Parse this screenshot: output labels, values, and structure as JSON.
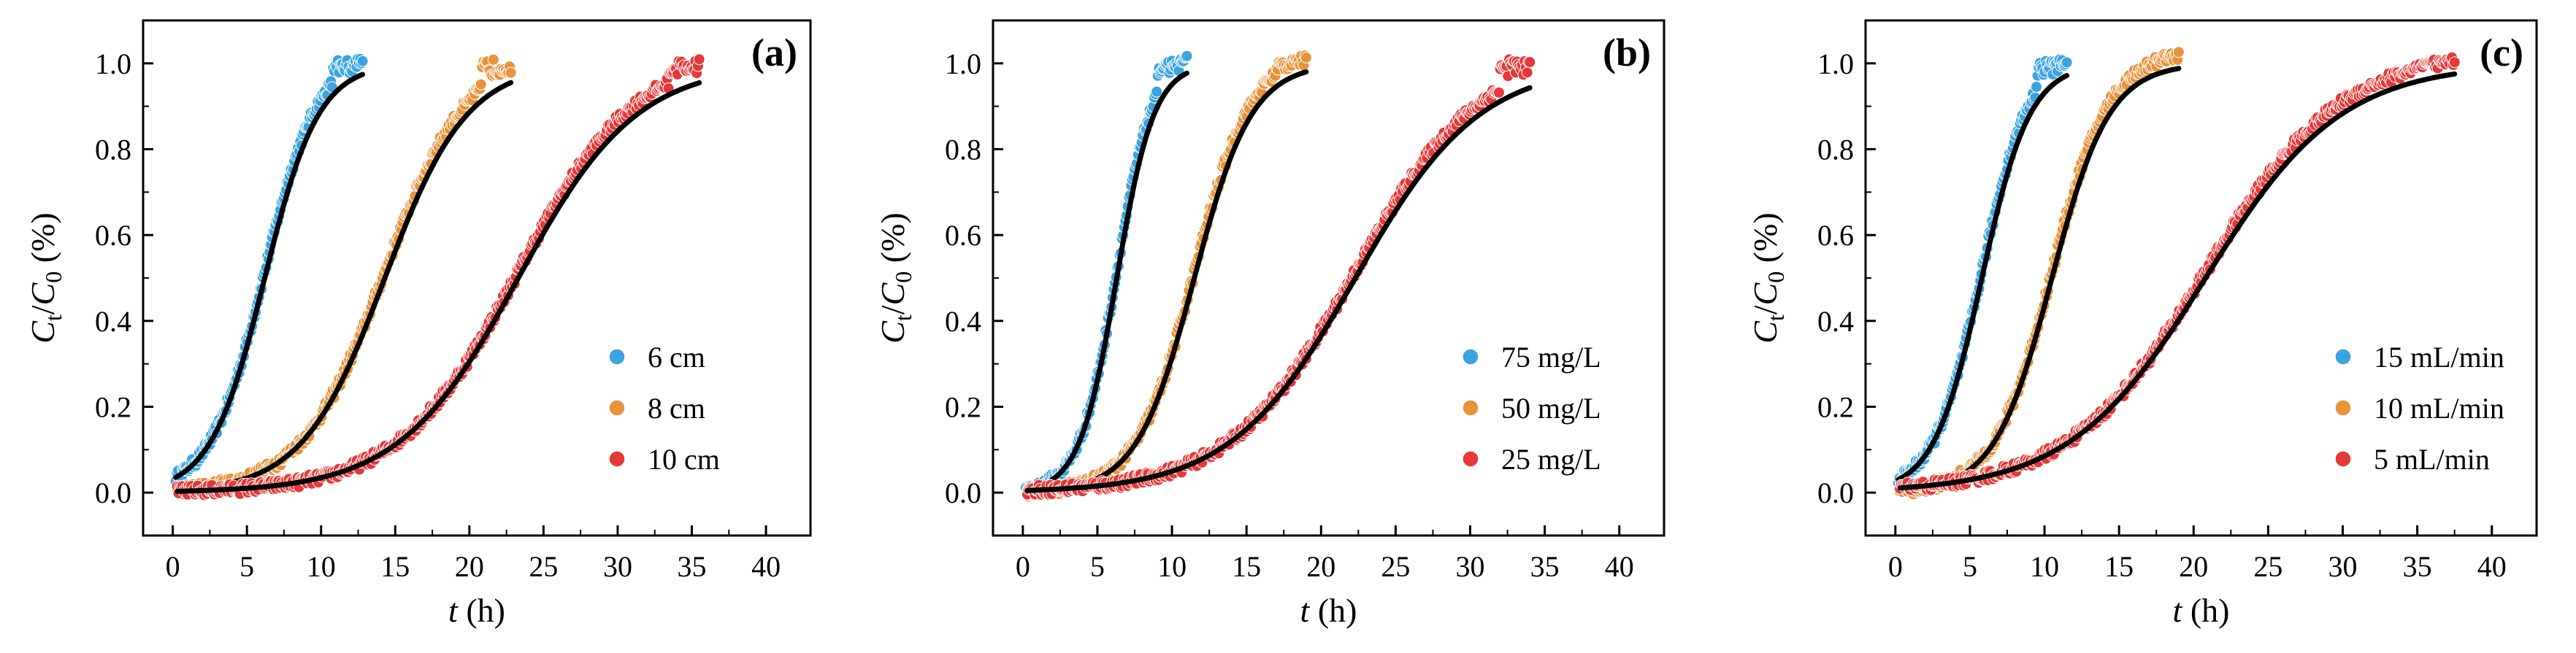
{
  "figure": {
    "panels": [
      "(a)",
      "(b)",
      "(c)"
    ]
  },
  "chart_data": [
    {
      "type": "scatter",
      "panel_label": "(a)",
      "xlabel": "t (h)",
      "ylabel": "Ct/C0 (%)",
      "xlim": [
        -2,
        43
      ],
      "ylim": [
        -0.1,
        1.1
      ],
      "xticks": [
        0,
        5,
        10,
        15,
        20,
        25,
        30,
        35,
        40
      ],
      "yticks": [
        0.0,
        0.2,
        0.4,
        0.6,
        0.8,
        1.0
      ],
      "grid": false,
      "legend_position": "bottom-right",
      "series": [
        {
          "name": "6 cm",
          "color": "#3ba3e0",
          "x0": 6.2,
          "k": 0.55,
          "tmin": 0.2,
          "tmax": 12.8,
          "x": [
            0.2,
            1,
            2,
            3,
            4,
            5,
            6,
            7,
            8,
            9,
            10,
            11,
            12,
            12.8
          ],
          "y": [
            0.04,
            0.06,
            0.1,
            0.15,
            0.24,
            0.4,
            0.55,
            0.68,
            0.79,
            0.86,
            0.91,
            0.94,
            0.98,
            1.02
          ]
        },
        {
          "name": "8 cm",
          "color": "#e8923a",
          "x0": 14.3,
          "k": 0.36,
          "tmin": 0.3,
          "tmax": 22.8,
          "x": [
            0.3,
            3,
            6,
            8,
            10,
            12,
            14,
            16,
            18,
            20,
            22,
            22.8
          ],
          "y": [
            0.01,
            0.02,
            0.05,
            0.1,
            0.2,
            0.35,
            0.5,
            0.66,
            0.8,
            0.93,
            0.98,
            0.98
          ]
        },
        {
          "name": "10 cm",
          "color": "#e63838",
          "x0": 23.3,
          "k": 0.25,
          "tmin": 0.3,
          "tmax": 35.5,
          "x": [
            0.3,
            5,
            10,
            14,
            18,
            21,
            24,
            27,
            30,
            33,
            35.5
          ],
          "y": [
            0.0,
            0.02,
            0.05,
            0.1,
            0.22,
            0.36,
            0.55,
            0.7,
            0.88,
            0.97,
            1.01
          ]
        }
      ]
    },
    {
      "type": "scatter",
      "panel_label": "(b)",
      "xlabel": "t (h)",
      "ylabel": "Ct/C0 (%)",
      "xlim": [
        -2,
        43
      ],
      "ylim": [
        -0.1,
        1.1
      ],
      "xticks": [
        0,
        5,
        10,
        15,
        20,
        25,
        30,
        35,
        40
      ],
      "yticks": [
        0.0,
        0.2,
        0.4,
        0.6,
        0.8,
        1.0
      ],
      "grid": false,
      "legend_position": "bottom-right",
      "series": [
        {
          "name": "75 mg/L",
          "color": "#3ba3e0",
          "x0": 6.3,
          "k": 0.8,
          "tmin": 0.2,
          "tmax": 11,
          "x": [
            0.2,
            2,
            3,
            4,
            5,
            6,
            7,
            8,
            9,
            10,
            11
          ],
          "y": [
            0.01,
            0.03,
            0.07,
            0.15,
            0.3,
            0.48,
            0.68,
            0.87,
            0.95,
            0.99,
            1.0
          ]
        },
        {
          "name": "50 mg/L",
          "color": "#e8923a",
          "x0": 11.5,
          "k": 0.52,
          "tmin": 0.3,
          "tmax": 19,
          "x": [
            0.3,
            4,
            7,
            9,
            11,
            13,
            15,
            17,
            19
          ],
          "y": [
            0.0,
            0.03,
            0.08,
            0.22,
            0.42,
            0.68,
            0.85,
            0.97,
            0.99
          ]
        },
        {
          "name": "25 mg/L",
          "color": "#e63838",
          "x0": 22.3,
          "k": 0.24,
          "tmin": 0.3,
          "tmax": 34,
          "x": [
            0.3,
            5,
            10,
            14,
            18,
            21,
            24,
            27,
            30,
            32,
            34
          ],
          "y": [
            0.0,
            0.02,
            0.06,
            0.12,
            0.26,
            0.41,
            0.6,
            0.76,
            0.88,
            0.95,
            1.0
          ]
        }
      ]
    },
    {
      "type": "scatter",
      "panel_label": "(c)",
      "xlabel": "t (h)",
      "ylabel": "Ct/C0 (%)",
      "xlim": [
        -2,
        43
      ],
      "ylim": [
        -0.1,
        1.1
      ],
      "xticks": [
        0,
        5,
        10,
        15,
        20,
        25,
        30,
        35,
        40
      ],
      "yticks": [
        0.0,
        0.2,
        0.4,
        0.6,
        0.8,
        1.0
      ],
      "grid": false,
      "legend_position": "bottom-right",
      "series": [
        {
          "name": "15 mL/min",
          "color": "#3ba3e0",
          "x0": 5.8,
          "k": 0.62,
          "tmin": 0.2,
          "tmax": 11.5,
          "x": [
            0.2,
            2,
            3,
            4,
            5,
            6,
            7,
            8,
            9,
            10,
            11.5
          ],
          "y": [
            0.06,
            0.08,
            0.14,
            0.24,
            0.38,
            0.52,
            0.68,
            0.8,
            0.89,
            0.95,
            0.99
          ]
        },
        {
          "name": "10 mL/min",
          "color": "#e8923a",
          "x0": 10.5,
          "k": 0.52,
          "tmin": 0.3,
          "tmax": 19,
          "x": [
            0.3,
            4,
            7,
            9,
            11,
            13,
            15,
            17,
            19
          ],
          "y": [
            0.0,
            0.03,
            0.11,
            0.28,
            0.54,
            0.76,
            0.9,
            0.97,
            0.99
          ]
        },
        {
          "name": "5 mL/min",
          "color": "#e63838",
          "x0": 20.8,
          "k": 0.22,
          "tmin": 0.3,
          "tmax": 37.5,
          "x": [
            0.3,
            5,
            10,
            14,
            18,
            21,
            24,
            27,
            30,
            33,
            35,
            37.5
          ],
          "y": [
            0.0,
            0.03,
            0.07,
            0.14,
            0.32,
            0.5,
            0.68,
            0.82,
            0.91,
            0.97,
            0.99,
            1.0
          ]
        }
      ]
    }
  ]
}
